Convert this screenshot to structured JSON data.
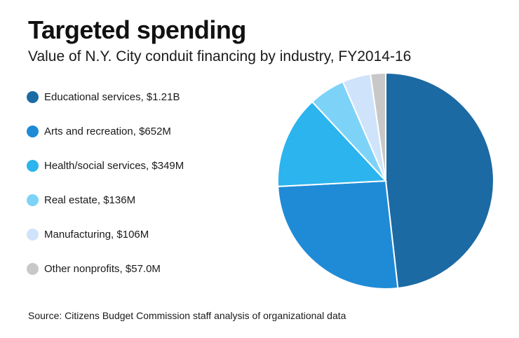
{
  "title": "Targeted spending",
  "subtitle": "Value of N.Y. City conduit financing by industry, FY2014-16",
  "source": "Source: Citizens Budget Commission staff analysis of organizational data",
  "chart_data": {
    "type": "pie",
    "title": "Targeted spending",
    "subtitle": "Value of N.Y. City conduit financing by industry, FY2014-16",
    "unit": "USD",
    "legend_position": "left",
    "slices": [
      {
        "label": "Educational services, $1.21B",
        "category": "Educational services",
        "value": 1210,
        "value_label": "$1.21B",
        "color": "#1c6aa3"
      },
      {
        "label": "Arts and recreation, $652M",
        "category": "Arts and recreation",
        "value": 652,
        "value_label": "$652M",
        "color": "#1f8bd6"
      },
      {
        "label": "Health/social services, $349M",
        "category": "Health/social services",
        "value": 349,
        "value_label": "$349M",
        "color": "#2bb4ed"
      },
      {
        "label": "Real estate, $136M",
        "category": "Real estate",
        "value": 136,
        "value_label": "$136M",
        "color": "#7dd3f7"
      },
      {
        "label": "Manufacturing, $106M",
        "category": "Manufacturing",
        "value": 106,
        "value_label": "$106M",
        "color": "#cfe3fb"
      },
      {
        "label": "Other nonprofits, $57.0M",
        "category": "Other nonprofits",
        "value": 57,
        "value_label": "$57.0M",
        "color": "#c8c8c8"
      }
    ]
  }
}
